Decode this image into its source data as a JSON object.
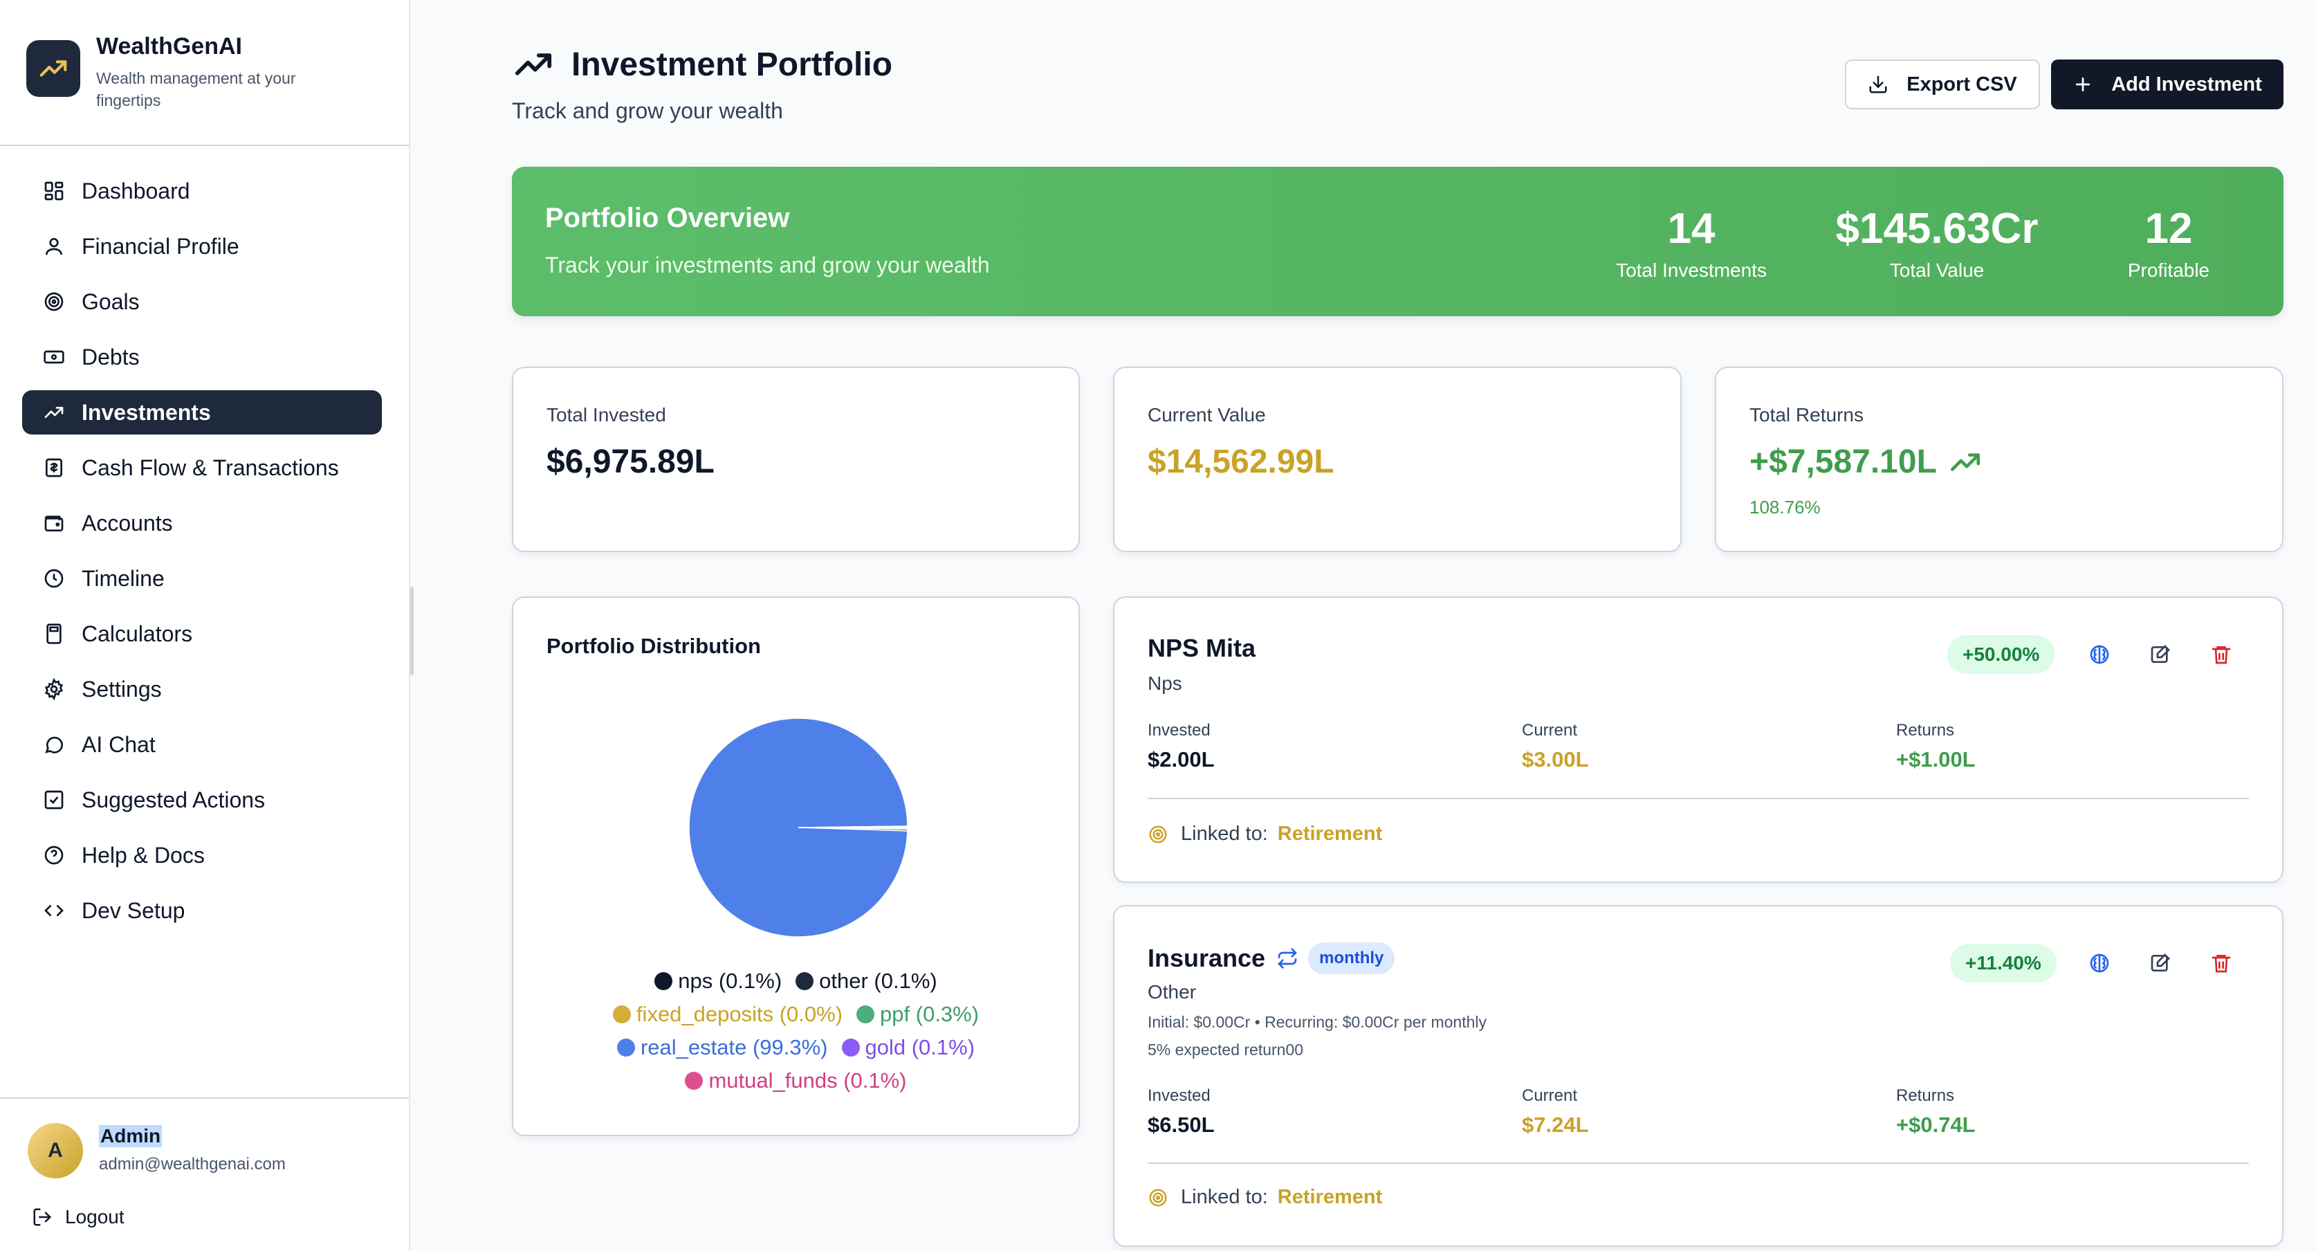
{
  "app": {
    "name": "WealthGenAI",
    "tagline": "Wealth management at your fingertips"
  },
  "nav": [
    {
      "label": "Dashboard",
      "icon": "dashboard-icon",
      "active": false
    },
    {
      "label": "Financial Profile",
      "icon": "user-icon",
      "active": false
    },
    {
      "label": "Goals",
      "icon": "target-icon",
      "active": false
    },
    {
      "label": "Debts",
      "icon": "banknote-icon",
      "active": false
    },
    {
      "label": "Investments",
      "icon": "trending-up-icon",
      "active": true
    },
    {
      "label": "Cash Flow & Transactions",
      "icon": "receipt-icon",
      "active": false
    },
    {
      "label": "Accounts",
      "icon": "wallet-icon",
      "active": false
    },
    {
      "label": "Timeline",
      "icon": "clock-icon",
      "active": false
    },
    {
      "label": "Calculators",
      "icon": "calculator-icon",
      "active": false
    },
    {
      "label": "Settings",
      "icon": "gear-icon",
      "active": false
    },
    {
      "label": "AI Chat",
      "icon": "chat-icon",
      "active": false
    },
    {
      "label": "Suggested Actions",
      "icon": "checkbox-icon",
      "active": false
    },
    {
      "label": "Help & Docs",
      "icon": "help-icon",
      "active": false
    },
    {
      "label": "Dev Setup",
      "icon": "code-icon",
      "active": false
    }
  ],
  "user": {
    "initial": "A",
    "name": "Admin",
    "email": "admin@wealthgenai.com",
    "logout": "Logout"
  },
  "header": {
    "title": "Investment Portfolio",
    "subtitle": "Track and grow your wealth",
    "export_label": "Export CSV",
    "add_label": "Add Investment"
  },
  "overview": {
    "title": "Portfolio Overview",
    "subtitle": "Track your investments and grow your wealth",
    "stats": [
      {
        "value": "14",
        "label": "Total Investments"
      },
      {
        "value": "$145.63Cr",
        "label": "Total Value"
      },
      {
        "value": "12",
        "label": "Profitable"
      }
    ]
  },
  "summary": {
    "invested": {
      "label": "Total Invested",
      "value": "$6,975.89L"
    },
    "current": {
      "label": "Current Value",
      "value": "$14,562.99L"
    },
    "returns": {
      "label": "Total Returns",
      "value": "+$7,587.10L",
      "pct": "108.76%"
    }
  },
  "distribution": {
    "title": "Portfolio Distribution",
    "legend": [
      {
        "label": "nps (0.1%)",
        "color": "#0f172a"
      },
      {
        "label": "other (0.1%)",
        "color": "#1e293b"
      },
      {
        "label": "fixed_deposits (0.0%)",
        "color": "#d4af37"
      },
      {
        "label": "ppf (0.3%)",
        "color": "#4caf7a"
      },
      {
        "label": "real_estate (99.3%)",
        "color": "#4f7fe8"
      },
      {
        "label": "gold (0.1%)",
        "color": "#8b5cf6"
      },
      {
        "label": "mutual_funds (0.1%)",
        "color": "#db4f8f"
      }
    ]
  },
  "chart_data": {
    "type": "pie",
    "title": "Portfolio Distribution",
    "slices": [
      {
        "label": "nps",
        "value": 0.1
      },
      {
        "label": "other",
        "value": 0.1
      },
      {
        "label": "fixed_deposits",
        "value": 0.0
      },
      {
        "label": "ppf",
        "value": 0.3
      },
      {
        "label": "real_estate",
        "value": 99.3
      },
      {
        "label": "gold",
        "value": 0.1
      },
      {
        "label": "mutual_funds",
        "value": 0.1
      }
    ]
  },
  "investments": [
    {
      "name": "NPS Mita",
      "type": "Nps",
      "returns_pct": "+50.00%",
      "invested_label": "Invested",
      "invested": "$2.00L",
      "current_label": "Current",
      "current": "$3.00L",
      "returns_label": "Returns",
      "returns": "+$1.00L",
      "linked_label": "Linked to:",
      "linked_goal": "Retirement"
    },
    {
      "name": "Insurance",
      "type": "Other",
      "frequency": "monthly",
      "returns_pct": "+11.40%",
      "detail": "Initial: $0.00Cr • Recurring: $0.00Cr per monthly",
      "expected": "5% expected return00",
      "invested_label": "Invested",
      "invested": "$6.50L",
      "current_label": "Current",
      "current": "$7.24L",
      "returns_label": "Returns",
      "returns": "+$0.74L",
      "linked_label": "Linked to:",
      "linked_goal": "Retirement"
    }
  ],
  "colors": {
    "accent_dark": "#1e293b",
    "green": "#4fae5c",
    "gold": "#c9a227",
    "positive": "#3f9d4c",
    "delete": "#dc2626",
    "ai": "#2563eb"
  }
}
